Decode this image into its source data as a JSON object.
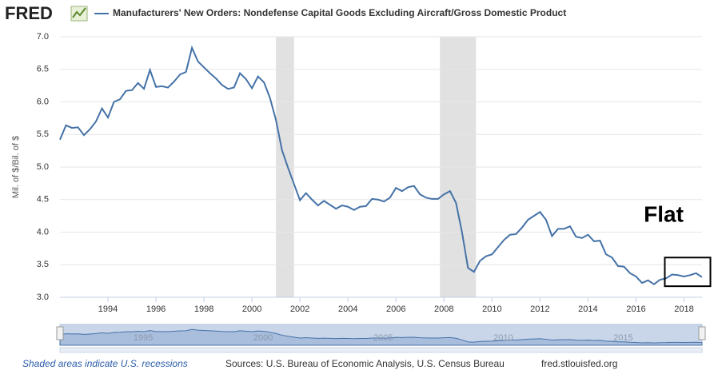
{
  "chart_data": {
    "type": "line",
    "logo": "FRED",
    "title": "Manufacturers' New Orders: Nondefense Capital Goods Excluding Aircraft/Gross Domestic Product",
    "ylabel": "Mil. of $/Bil. of $",
    "annotation": "Flat",
    "annotation_box": {
      "x": [
        2017.2,
        2019.1
      ],
      "y": [
        3.17,
        3.61
      ]
    },
    "recessions": [
      [
        2001.0,
        2001.75
      ],
      [
        2007.83,
        2009.33
      ]
    ],
    "recession_note": "Shaded areas indicate U.S. recessions",
    "source": "Sources: U.S. Bureau of Economic Analysis, U.S. Census Bureau",
    "site": "fred.stlouisfed.org",
    "x": [
      1992,
      1992.25,
      1992.5,
      1992.75,
      1993,
      1993.25,
      1993.5,
      1993.75,
      1994,
      1994.25,
      1994.5,
      1994.75,
      1995,
      1995.25,
      1995.5,
      1995.75,
      1996,
      1996.25,
      1996.5,
      1996.75,
      1997,
      1997.25,
      1997.5,
      1997.75,
      1998,
      1998.25,
      1998.5,
      1998.75,
      1999,
      1999.25,
      1999.5,
      1999.75,
      2000,
      2000.25,
      2000.5,
      2000.75,
      2001,
      2001.25,
      2001.5,
      2001.75,
      2002,
      2002.25,
      2002.5,
      2002.75,
      2003,
      2003.25,
      2003.5,
      2003.75,
      2004,
      2004.25,
      2004.5,
      2004.75,
      2005,
      2005.25,
      2005.5,
      2005.75,
      2006,
      2006.25,
      2006.5,
      2006.75,
      2007,
      2007.25,
      2007.5,
      2007.75,
      2008,
      2008.25,
      2008.5,
      2008.75,
      2009,
      2009.25,
      2009.5,
      2009.75,
      2010,
      2010.25,
      2010.5,
      2010.75,
      2011,
      2011.25,
      2011.5,
      2011.75,
      2012,
      2012.25,
      2012.5,
      2012.75,
      2013,
      2013.25,
      2013.5,
      2013.75,
      2014,
      2014.25,
      2014.5,
      2014.75,
      2015,
      2015.25,
      2015.5,
      2015.75,
      2016,
      2016.25,
      2016.5,
      2016.75,
      2017,
      2017.25,
      2017.5,
      2017.75,
      2018,
      2018.25,
      2018.5,
      2018.75
    ],
    "series": [
      {
        "name": "Manufacturers' New Orders: Nondefense Capital Goods Excluding Aircraft/Gross Domestic Product",
        "color": "#4572a7",
        "values": [
          5.42,
          5.64,
          5.6,
          5.61,
          5.49,
          5.58,
          5.7,
          5.9,
          5.76,
          6.0,
          6.04,
          6.17,
          6.18,
          6.29,
          6.2,
          6.49,
          6.23,
          6.24,
          6.22,
          6.31,
          6.42,
          6.46,
          6.83,
          6.62,
          6.53,
          6.44,
          6.36,
          6.26,
          6.2,
          6.22,
          6.44,
          6.35,
          6.21,
          6.39,
          6.3,
          6.06,
          5.72,
          5.26,
          4.99,
          4.74,
          4.49,
          4.6,
          4.5,
          4.41,
          4.48,
          4.42,
          4.36,
          4.41,
          4.39,
          4.34,
          4.39,
          4.4,
          4.51,
          4.5,
          4.47,
          4.53,
          4.68,
          4.63,
          4.69,
          4.71,
          4.58,
          4.53,
          4.51,
          4.51,
          4.58,
          4.63,
          4.45,
          4.0,
          3.45,
          3.39,
          3.56,
          3.63,
          3.66,
          3.77,
          3.88,
          3.96,
          3.97,
          4.07,
          4.19,
          4.25,
          4.31,
          4.19,
          3.94,
          4.05,
          4.05,
          4.09,
          3.93,
          3.91,
          3.96,
          3.86,
          3.87,
          3.66,
          3.61,
          3.48,
          3.47,
          3.37,
          3.32,
          3.22,
          3.26,
          3.2,
          3.27,
          3.29,
          3.35,
          3.34,
          3.32,
          3.34,
          3.37,
          3.31
        ]
      }
    ],
    "xlim": [
      1992,
      2018.75
    ],
    "xticks": [
      1994,
      1996,
      1998,
      2000,
      2002,
      2004,
      2006,
      2008,
      2010,
      2012,
      2014,
      2016,
      2018
    ],
    "ylim": [
      3,
      7
    ],
    "yticks": [
      {
        "value": 3,
        "label": "3.0"
      },
      {
        "value": 3.5,
        "label": "3.5"
      },
      {
        "value": 4,
        "label": "4.0"
      },
      {
        "value": 4.5,
        "label": "4.5"
      },
      {
        "value": 5,
        "label": "5.0"
      },
      {
        "value": 5.5,
        "label": "5.5"
      },
      {
        "value": 6,
        "label": "6.0"
      },
      {
        "value": 6.5,
        "label": "6.5"
      },
      {
        "value": 7,
        "label": "7.0"
      }
    ],
    "navigator_ticks": [
      1995,
      2000,
      2005,
      2010,
      2015
    ],
    "grid": true
  }
}
